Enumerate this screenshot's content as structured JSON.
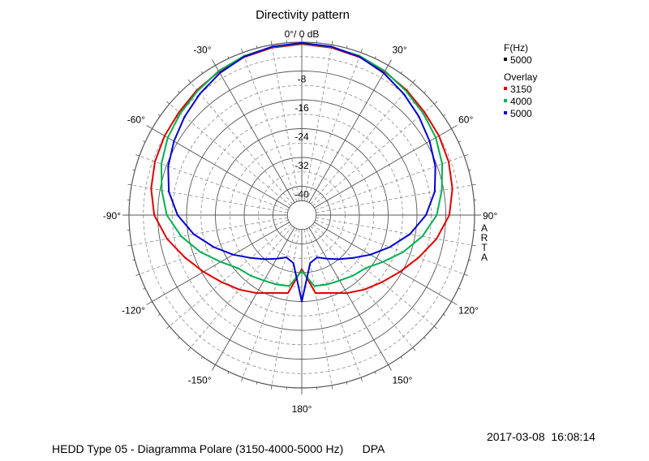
{
  "chart_data": {
    "type": "polar-line",
    "title": "Directivity pattern",
    "radial_unit": "dB",
    "radial_range": [
      -48,
      0
    ],
    "radial_tick_labels": [
      "0°/ 0 dB",
      "-8",
      "-16",
      "-24",
      "-32",
      "-40"
    ],
    "radial_ticks": [
      0,
      -8,
      -16,
      -24,
      -32,
      -40
    ],
    "angle_ticks": [
      {
        "angle": 0,
        "label": ""
      },
      {
        "angle": 30,
        "label": "30°"
      },
      {
        "angle": 60,
        "label": "60°"
      },
      {
        "angle": 90,
        "label": "90°"
      },
      {
        "angle": 120,
        "label": "120°"
      },
      {
        "angle": 150,
        "label": "150°"
      },
      {
        "angle": 180,
        "label": "180°"
      },
      {
        "angle": -150,
        "label": "-150°"
      },
      {
        "angle": -120,
        "label": "-120°"
      },
      {
        "angle": -90,
        "label": "-90°"
      },
      {
        "angle": -60,
        "label": "-60°"
      },
      {
        "angle": -30,
        "label": "-30°"
      }
    ],
    "vertical_label": "ARTA",
    "legend": {
      "header": "F(Hz)",
      "main_entry": "5000",
      "overlay_header": "Overlay",
      "entries": [
        "3150",
        "4000",
        "5000"
      ]
    },
    "angles": [
      0,
      10,
      20,
      30,
      40,
      50,
      60,
      70,
      80,
      90,
      100,
      110,
      120,
      130,
      140,
      150,
      160,
      170,
      180
    ],
    "series": [
      {
        "name": "3150",
        "color": "#e00000",
        "values": [
          -0.5,
          -0.8,
          -1.3,
          -2.0,
          -2.7,
          -3.5,
          -4.0,
          -4.6,
          -5.5,
          -7.0,
          -10.0,
          -13.5,
          -16.5,
          -19.0,
          -21.0,
          -23.0,
          -25.0,
          -26.0,
          -33.0
        ]
      },
      {
        "name": "4000",
        "color": "#00b050",
        "values": [
          -0.3,
          -0.6,
          -1.0,
          -1.8,
          -3.0,
          -4.0,
          -5.0,
          -6.5,
          -8.5,
          -10.5,
          -14.0,
          -18.0,
          -22.0,
          -25.0,
          -26.0,
          -27.0,
          -27.5,
          -28.0,
          -32.5
        ]
      },
      {
        "name": "5000",
        "color": "#0000d0",
        "values": [
          -0.2,
          -0.5,
          -1.2,
          -2.5,
          -4.0,
          -5.5,
          -7.0,
          -8.5,
          -10.5,
          -13.5,
          -17.5,
          -22.0,
          -26.0,
          -29.5,
          -32.0,
          -34.0,
          -35.5,
          -34.5,
          -24.0
        ]
      }
    ]
  },
  "footer": {
    "caption": "HEDD Type 05 - Diagramma Polare (3150-4000-5000 Hz)      DPA",
    "timestamp": "2017-03-08  16:08:14"
  }
}
